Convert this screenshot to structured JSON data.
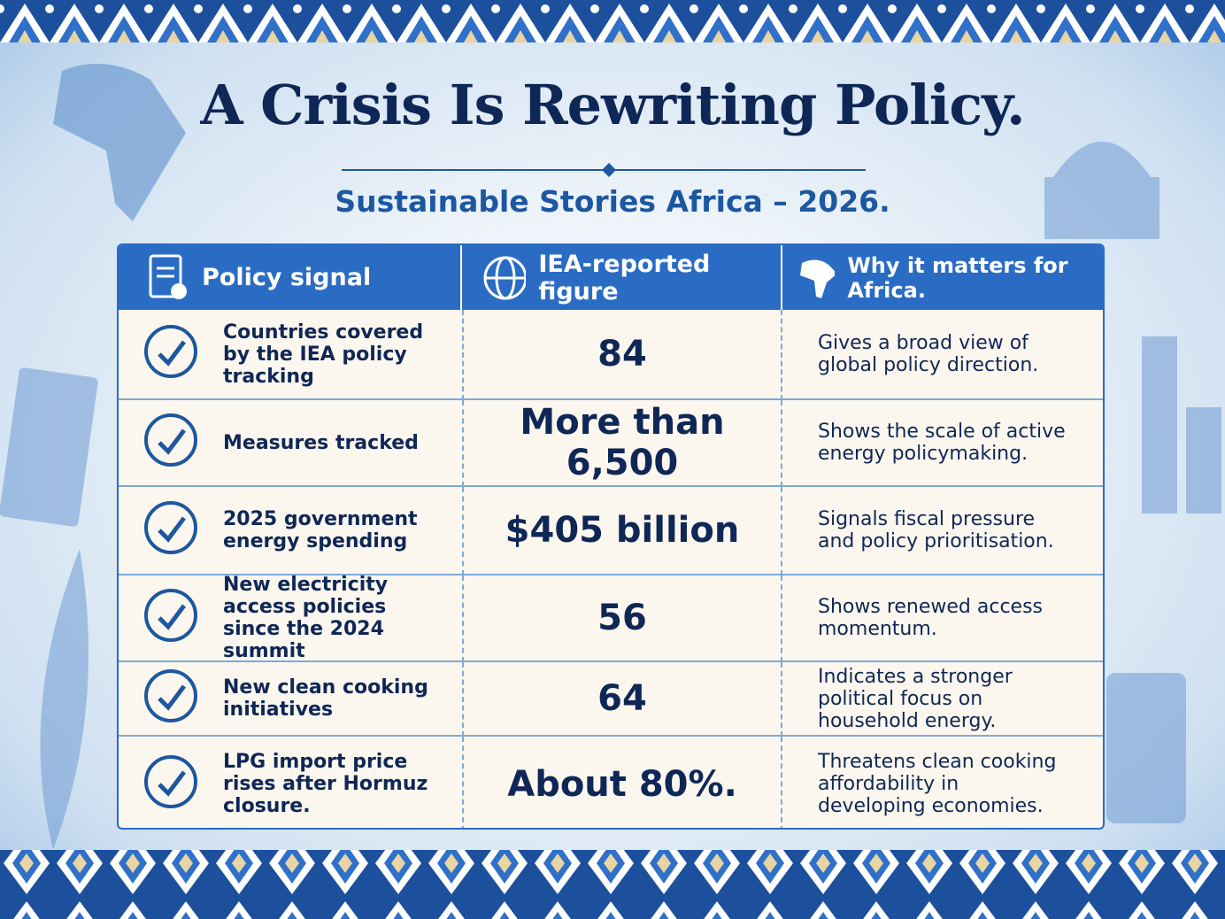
{
  "header": {
    "title": "A Crisis Is Rewriting Policy.",
    "subtitle": "Sustainable Stories Africa – 2026."
  },
  "table": {
    "columns": [
      "Policy signal",
      "IEA-reported figure",
      "Why it matters for Africa."
    ],
    "rows": [
      [
        "Countries covered by the IEA policy tracking",
        "84",
        "Gives a broad view of global policy direction."
      ],
      [
        "Measures tracked",
        "More than 6,500",
        "Shows the scale of active energy policymaking."
      ],
      [
        "2025 government energy spending",
        "$405 billion",
        "Signals fiscal pressure and policy prioritisation."
      ],
      [
        "New electricity access policies since the 2024 summit",
        "56",
        "Shows renewed access momentum."
      ],
      [
        "New clean cooking initiatives",
        "64",
        "Indicates a stronger political focus on household energy."
      ],
      [
        "LPG import price rises after Hormuz closure.",
        "About 80%.",
        "Threatens clean cooking affordability in developing economies."
      ]
    ]
  }
}
